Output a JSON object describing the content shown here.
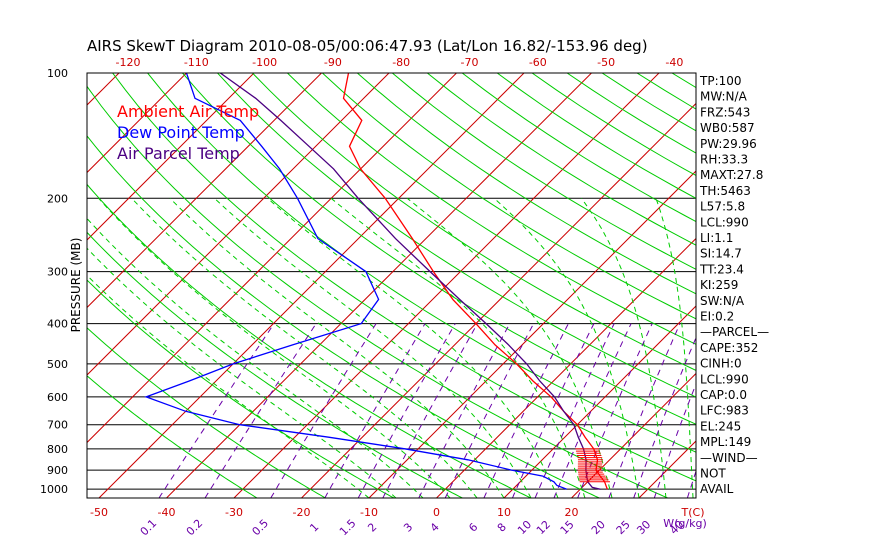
{
  "chart_data": {
    "type": "line",
    "title": "AIRS SkewT Diagram 2010-08-05/00:06:47.93 (Lat/Lon 16.82/-153.96 deg)",
    "ylabel": "PRESSURE (MB)",
    "y_scale": "log",
    "ylim": [
      1050,
      100
    ],
    "pressure_ticks": [
      100,
      200,
      300,
      400,
      500,
      600,
      700,
      800,
      900,
      1000
    ],
    "bottom_temp_ticks": [
      -50,
      -40,
      -30,
      -20,
      -10,
      0,
      10,
      20
    ],
    "bottom_temp_label": "T(C)",
    "top_temp_ticks": [
      -120,
      -110,
      -100,
      -90,
      -80,
      -70,
      -60,
      -50,
      -40
    ],
    "mixing_ratio_ticks": [
      "0.1",
      "0.2",
      "0.5",
      "1",
      "1.5",
      "2",
      "3",
      "4",
      "6",
      "8",
      "10",
      "12",
      "15",
      "20",
      "25",
      "30",
      "40"
    ],
    "mixing_ratio_label": "W(g/kg)",
    "legend": [
      "Ambient Air Temp",
      "Dew Point Temp",
      "Air Parcel Temp"
    ],
    "colors": {
      "ambient": "#ff0000",
      "dewpoint": "#0000ff",
      "parcel": "#4b0082",
      "isotherm": "#cc0000",
      "dry_adiabat": "#00cc00",
      "moist_adiabat": "#00cc00",
      "mixing_ratio": "#6a00a8",
      "isobar": "#000000"
    },
    "series": [
      {
        "name": "Ambient Air Temp",
        "pressure": [
          1000,
          960,
          930,
          900,
          850,
          800,
          750,
          700,
          650,
          600,
          550,
          500,
          450,
          400,
          350,
          300,
          250,
          200,
          170,
          150,
          130,
          115,
          100
        ],
        "temperature": [
          24.0,
          22.5,
          21.0,
          19.5,
          18.2,
          16.0,
          13.0,
          10.0,
          6.0,
          2.0,
          -3.0,
          -8.0,
          -14.0,
          -20.0,
          -27.0,
          -34.0,
          -42.0,
          -52.0,
          -60.0,
          -65.0,
          -67.0,
          -73.0,
          -76.0
        ]
      },
      {
        "name": "Dew Point Temp",
        "pressure": [
          1000,
          980,
          960,
          930,
          900,
          850,
          800,
          750,
          700,
          650,
          600,
          550,
          500,
          450,
          400,
          350,
          300,
          250,
          200,
          170,
          150,
          130,
          115,
          100
        ],
        "temperature": [
          18.0,
          16.0,
          15.0,
          12.5,
          7.0,
          -1.0,
          -12.0,
          -25.0,
          -40.0,
          -50.0,
          -58.0,
          -54.0,
          -50.0,
          -44.0,
          -37.0,
          -38.0,
          -44.0,
          -56.0,
          -65.0,
          -72.0,
          -78.0,
          -85.0,
          -95.0,
          -100.0
        ]
      },
      {
        "name": "Air Parcel Temp",
        "pressure": [
          1000,
          990,
          960,
          930,
          900,
          850,
          800,
          750,
          700,
          650,
          600,
          550,
          500,
          450,
          400,
          350,
          300,
          250,
          200,
          170,
          150,
          130,
          115,
          100
        ],
        "temperature": [
          23.0,
          21.5,
          20.0,
          19.0,
          18.0,
          16.5,
          14.5,
          12.0,
          9.5,
          6.0,
          2.5,
          -2.0,
          -6.5,
          -12.0,
          -18.5,
          -26.0,
          -34.5,
          -44.5,
          -56.0,
          -64.0,
          -71.0,
          -79.0,
          -86.0,
          -95.0
        ]
      }
    ],
    "indices": [
      "TP:100",
      "MW:N/A",
      "FRZ:543",
      "WB0:587",
      "PW:29.96",
      "RH:33.3",
      "MAXT:27.8",
      "TH:5463",
      "L57:5.8",
      "LCL:990",
      "LI:1.1",
      "SI:14.7",
      "TT:23.4",
      "KI:259",
      "SW:N/A",
      "EI:0.2",
      "—PARCEL—",
      "CAPE:352",
      "CINH:0",
      "LCL:990",
      "CAP:0.0",
      "LFC:983",
      "EL:245",
      "MPL:149",
      "—WIND—",
      "NOT",
      "AVAIL"
    ]
  }
}
